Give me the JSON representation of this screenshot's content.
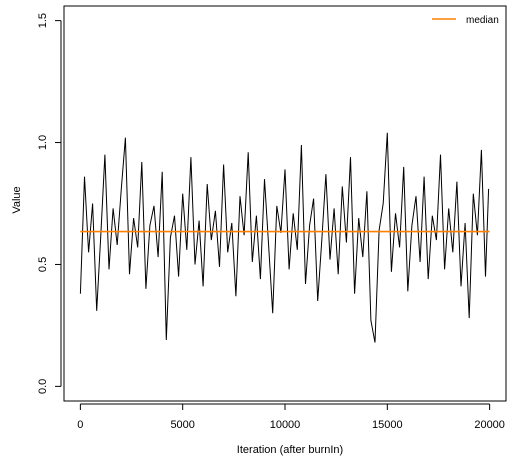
{
  "chart_data": {
    "type": "line",
    "title": "",
    "xlabel": "Iteration (after burnIn)",
    "ylabel": "Value",
    "xlim": [
      0,
      20000
    ],
    "ylim": [
      0.0,
      1.5
    ],
    "xticks": [
      0,
      5000,
      10000,
      15000,
      20000
    ],
    "xtick_labels": [
      "0",
      "5000",
      "10000",
      "15000",
      "20000"
    ],
    "yticks": [
      0.0,
      0.5,
      1.0,
      1.5
    ],
    "ytick_labels": [
      "0.0",
      "0.5",
      "1.0",
      "1.5"
    ],
    "grid": false,
    "legend_position": "top-right",
    "series": [
      {
        "name": "",
        "color": "#000000",
        "x": [
          0,
          200,
          400,
          600,
          800,
          1000,
          1200,
          1400,
          1600,
          1800,
          2000,
          2200,
          2400,
          2600,
          2800,
          3000,
          3200,
          3400,
          3600,
          3800,
          4000,
          4200,
          4400,
          4600,
          4800,
          5000,
          5200,
          5400,
          5600,
          5800,
          6000,
          6200,
          6400,
          6600,
          6800,
          7000,
          7200,
          7400,
          7600,
          7800,
          8000,
          8200,
          8400,
          8600,
          8800,
          9000,
          9200,
          9400,
          9600,
          9800,
          10000,
          10200,
          10400,
          10600,
          10800,
          11000,
          11200,
          11400,
          11600,
          11800,
          12000,
          12200,
          12400,
          12600,
          12800,
          13000,
          13200,
          13400,
          13600,
          13800,
          14000,
          14200,
          14400,
          14600,
          14800,
          15000,
          15200,
          15400,
          15600,
          15800,
          16000,
          16200,
          16400,
          16600,
          16800,
          17000,
          17200,
          17400,
          17600,
          17800,
          18000,
          18200,
          18400,
          18600,
          18800,
          19000,
          19200,
          19400,
          19600,
          19800,
          19950
        ],
        "values": [
          0.38,
          0.86,
          0.55,
          0.75,
          0.31,
          0.62,
          0.95,
          0.48,
          0.73,
          0.58,
          0.81,
          1.02,
          0.46,
          0.69,
          0.57,
          0.92,
          0.4,
          0.66,
          0.74,
          0.53,
          0.88,
          0.19,
          0.61,
          0.7,
          0.45,
          0.79,
          0.56,
          0.94,
          0.5,
          0.68,
          0.41,
          0.83,
          0.6,
          0.72,
          0.49,
          0.91,
          0.55,
          0.67,
          0.37,
          0.78,
          0.62,
          0.96,
          0.51,
          0.7,
          0.44,
          0.85,
          0.58,
          0.3,
          0.74,
          0.63,
          0.89,
          0.48,
          0.71,
          0.56,
          0.99,
          0.42,
          0.66,
          0.77,
          0.35,
          0.6,
          0.87,
          0.52,
          0.73,
          0.46,
          0.82,
          0.59,
          0.94,
          0.38,
          0.69,
          0.53,
          0.8,
          0.27,
          0.18,
          0.64,
          0.75,
          1.04,
          0.47,
          0.71,
          0.57,
          0.9,
          0.39,
          0.66,
          0.78,
          0.51,
          0.86,
          0.44,
          0.7,
          0.6,
          0.95,
          0.48,
          0.73,
          0.55,
          0.84,
          0.41,
          0.67,
          0.28,
          0.79,
          0.62,
          0.97,
          0.45,
          0.81
        ]
      },
      {
        "name": "median",
        "color": "#FF8000",
        "x": [
          0,
          20000
        ],
        "values": [
          0.635,
          0.635
        ]
      }
    ],
    "legend": [
      {
        "label": "median",
        "color": "#FF8000"
      }
    ]
  }
}
